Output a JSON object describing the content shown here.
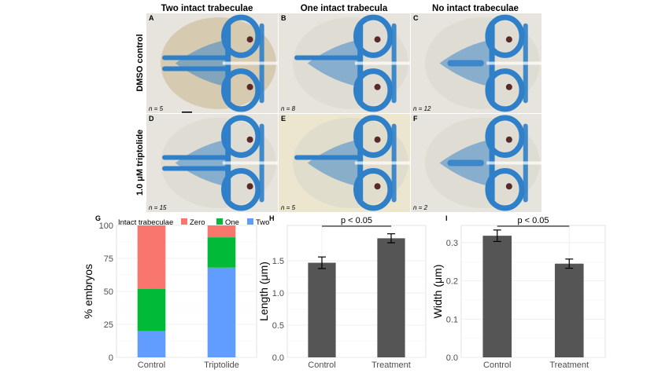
{
  "figure": {
    "column_headers": [
      "Two intact trabeculae",
      "One intact trabecula",
      "No intact trabeculae"
    ],
    "row_labels": [
      "DMSO control",
      "1.0 μM triptolide"
    ],
    "panels": [
      {
        "letter": "A",
        "n": "n = 5"
      },
      {
        "letter": "B",
        "n": "n = 8"
      },
      {
        "letter": "C",
        "n": "n = 12"
      },
      {
        "letter": "D",
        "n": "n = 15"
      },
      {
        "letter": "E",
        "n": "n = 5"
      },
      {
        "letter": "F",
        "n": "n = 2"
      }
    ],
    "tissue_colors": {
      "background": "#e6e4dc",
      "cartilage": "#2f80c8",
      "tissue": "#c9b48e",
      "eye": "#5a2a2a"
    }
  },
  "chart_data": [
    {
      "panel": "G",
      "type": "bar",
      "stacked": true,
      "categories": [
        "Control",
        "Triptolide"
      ],
      "ylabel": "% embryos",
      "ylim": [
        0,
        100
      ],
      "yticks": [
        0,
        25,
        50,
        75,
        100
      ],
      "legend_title": "Intact trabeculae",
      "legend_position": "top",
      "series": [
        {
          "name": "Two",
          "color": "#619cff",
          "values": [
            20,
            68
          ]
        },
        {
          "name": "One",
          "color": "#00ba38",
          "values": [
            32,
            23
          ]
        },
        {
          "name": "Zero",
          "color": "#f8766d",
          "values": [
            48,
            9
          ]
        }
      ],
      "legend_order": [
        "Zero",
        "One",
        "Two"
      ],
      "grid": true
    },
    {
      "panel": "H",
      "type": "bar",
      "categories": [
        "Control",
        "Treatment"
      ],
      "values": [
        1.47,
        1.85
      ],
      "errors": [
        0.09,
        0.07
      ],
      "ylabel": "Length (μm)",
      "ylim": [
        0,
        2.05
      ],
      "yticks": [
        "0.0",
        "0.5",
        "1.0",
        "1.5"
      ],
      "bar_color": "#555555",
      "annotation": "p < 0.05",
      "grid": true
    },
    {
      "panel": "I",
      "type": "bar",
      "categories": [
        "Control",
        "Treatment"
      ],
      "values": [
        0.318,
        0.245
      ],
      "errors": [
        0.015,
        0.012
      ],
      "ylabel": "Width (μm)",
      "ylim": [
        0,
        0.345
      ],
      "yticks": [
        "0.0",
        "0.1",
        "0.2",
        "0.3"
      ],
      "bar_color": "#555555",
      "annotation": "p < 0.05",
      "grid": true
    }
  ]
}
